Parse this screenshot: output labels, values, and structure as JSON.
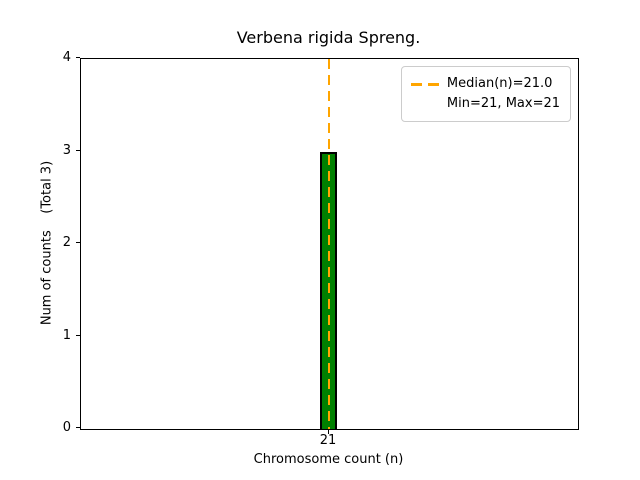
{
  "chart_data": {
    "type": "bar",
    "title": "Verbena rigida Spreng.",
    "xlabel": "Chromosome count (n)",
    "ylabel": "Num of counts    (Total 3)",
    "categories": [
      "21"
    ],
    "values": [
      3
    ],
    "total": 3,
    "ylim": [
      0,
      4
    ],
    "yticks": [
      0,
      1,
      2,
      3,
      4
    ],
    "xticks": [
      "21"
    ],
    "median": 21.0,
    "min": 21,
    "max": 21,
    "legend": {
      "position": "upper right",
      "entries": [
        "Median(n)=21.0",
        "Min=21, Max=21"
      ]
    },
    "colors": {
      "bar_fill": "#008000",
      "bar_edge": "#000000",
      "median_line": "#FFA500",
      "axis": "#000000",
      "legend_border": "#cccccc",
      "background": "#ffffff"
    },
    "grid": false
  }
}
